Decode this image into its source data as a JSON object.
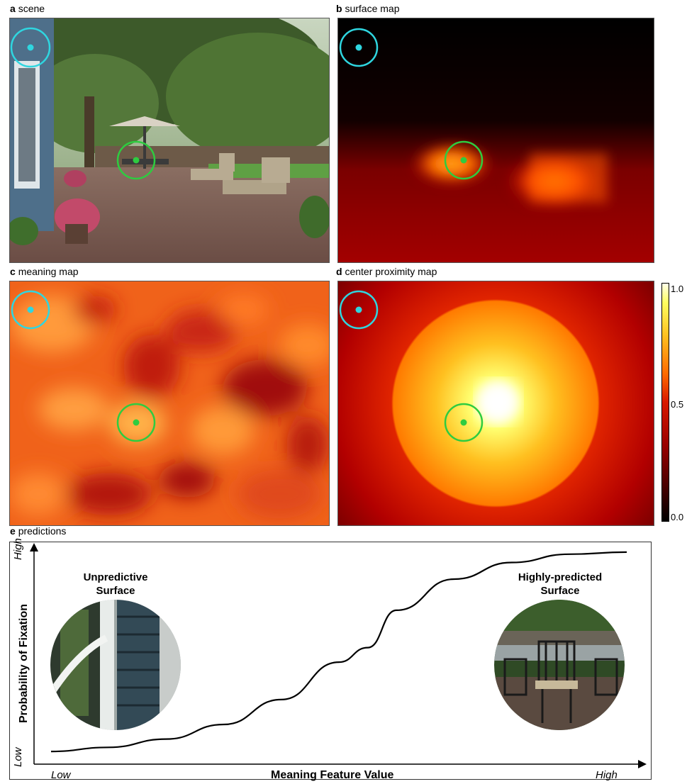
{
  "figure": {
    "panels": [
      {
        "letter": "a",
        "title": "scene"
      },
      {
        "letter": "b",
        "title": "surface map"
      },
      {
        "letter": "c",
        "title": "meaning map"
      },
      {
        "letter": "d",
        "title": "center proximity map"
      },
      {
        "letter": "e",
        "title": "predictions"
      }
    ],
    "colorbar": {
      "ticks": [
        "1.0",
        "0.5",
        "0.0"
      ]
    },
    "markers": {
      "unpredictive_color": "#2fd6e0",
      "predicted_color": "#2ecc40"
    },
    "predictions": {
      "ylabel": "Probability of Fixation",
      "xlabel": "Meaning Feature Value",
      "y_high": "High",
      "y_low": "Low",
      "x_low": "Low",
      "x_high": "High",
      "left_callout": [
        "Unpredictive",
        "Surface"
      ],
      "right_callout": [
        "Highly-predicted",
        "Surface"
      ]
    }
  },
  "chart_data": {
    "type": "line",
    "title": "",
    "xlabel": "Meaning Feature Value",
    "ylabel": "Probability of Fixation",
    "x_ticks": [
      "Low",
      "High"
    ],
    "y_ticks": [
      "Low",
      "High"
    ],
    "series": [
      {
        "x": [
          0,
          0.1,
          0.2,
          0.3,
          0.4,
          0.5,
          0.55,
          0.6,
          0.7,
          0.8,
          0.9,
          1.0
        ],
        "y": [
          0.02,
          0.04,
          0.08,
          0.15,
          0.27,
          0.45,
          0.52,
          0.7,
          0.85,
          0.93,
          0.97,
          0.98
        ]
      }
    ]
  }
}
